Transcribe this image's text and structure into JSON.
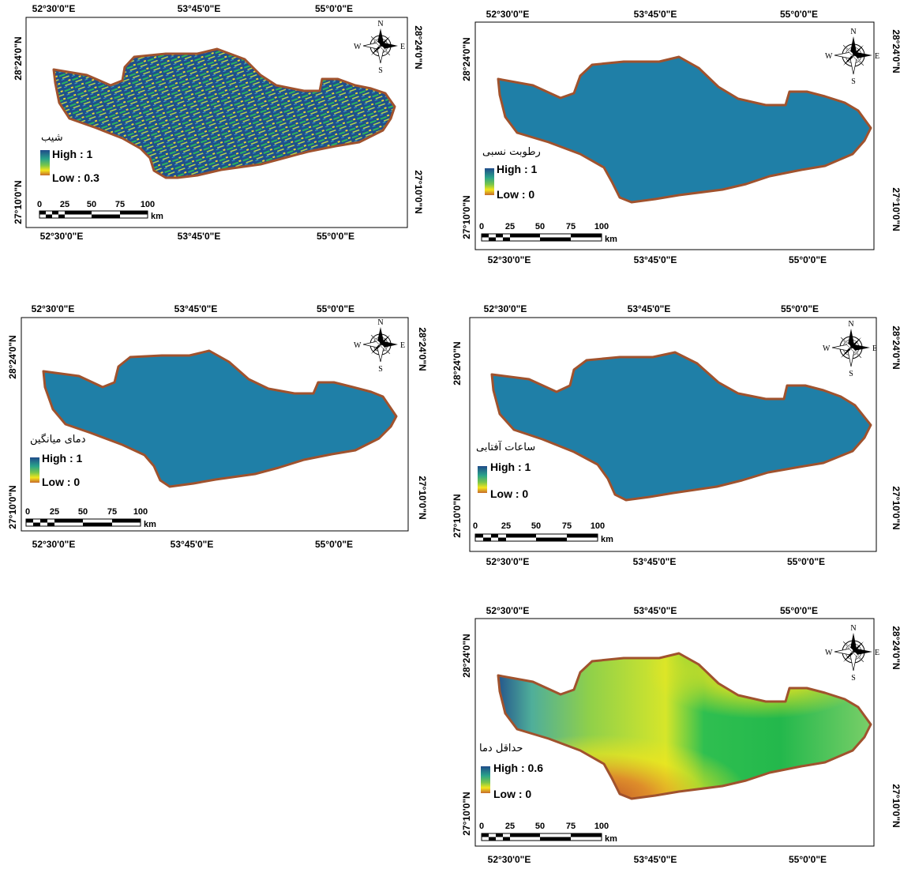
{
  "coords": {
    "lon": [
      "52°30'0\"E",
      "53°45'0\"E",
      "55°0'0\"E"
    ],
    "lat": [
      "28°24'0\"N",
      "27°10'0\"N"
    ]
  },
  "compass": {
    "n": "N",
    "s": "S",
    "e": "E",
    "w": "W"
  },
  "scalebar": {
    "ticks": [
      "0",
      "25",
      "50",
      "75",
      "100"
    ],
    "unit": "km"
  },
  "colors": {
    "boundary": "#a0522d",
    "uniform_fill": "#1f7fa7",
    "ramp_top": "#1f4b8a",
    "ramp_mid": "#2fbf50",
    "ramp_low_mid": "#f3e51c",
    "ramp_bottom": "#c66a2a"
  },
  "maps": [
    {
      "id": "slope",
      "title": "شیب",
      "high": "High : 1",
      "low": "Low : 0.3"
    },
    {
      "id": "relative-humidity",
      "title": "رطوبت نسبی",
      "high": "High : 1",
      "low": "Low : 0"
    },
    {
      "id": "mean-temperature",
      "title": "دمای میانگین",
      "high": "High : 1",
      "low": "Low : 0"
    },
    {
      "id": "sunshine-hours",
      "title": "ساعات آفتابی",
      "high": "High : 1",
      "low": "Low : 0"
    },
    {
      "id": "minimum-temperature",
      "title": "حداقل دما",
      "high": "High : 0.6",
      "low": "Low : 0"
    }
  ]
}
